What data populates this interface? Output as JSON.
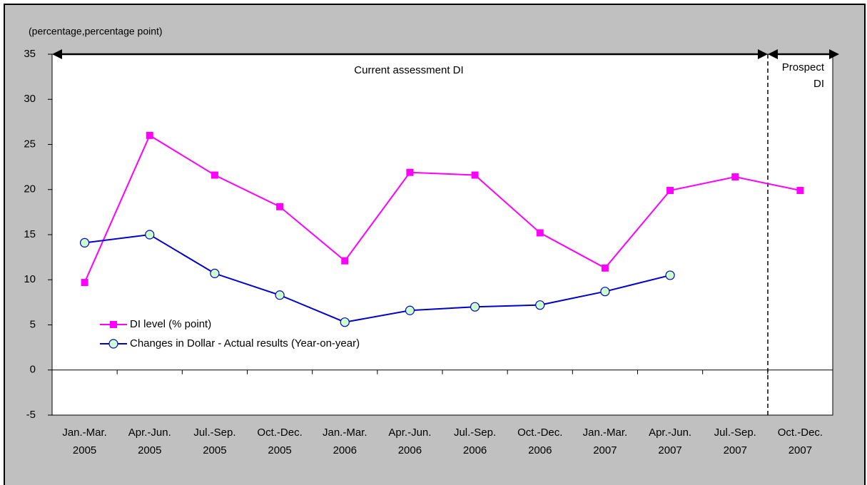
{
  "chart_data": {
    "type": "line",
    "y_label": "(percentage,percentage point)",
    "annotations": {
      "current": "Current assessment DI",
      "prospect": [
        "Prospect",
        "DI"
      ]
    },
    "categories": [
      [
        "Jan.-Mar.",
        "2005"
      ],
      [
        "Apr.-Jun.",
        "2005"
      ],
      [
        "Jul.-Sep.",
        "2005"
      ],
      [
        "Oct.-Dec.",
        "2005"
      ],
      [
        "Jan.-Mar.",
        "2006"
      ],
      [
        "Apr.-Jun.",
        "2006"
      ],
      [
        "Jul.-Sep.",
        "2006"
      ],
      [
        "Oct.-Dec.",
        "2006"
      ],
      [
        "Jan.-Mar.",
        "2007"
      ],
      [
        "Apr.-Jun.",
        "2007"
      ],
      [
        "Jul.-Sep.",
        "2007"
      ],
      [
        "Oct.-Dec.",
        "2007"
      ]
    ],
    "series": [
      {
        "name": "DI level (% point)",
        "color": "#ff00ff",
        "marker": "square",
        "values": [
          9.7,
          26.0,
          21.6,
          18.1,
          12.1,
          21.9,
          21.6,
          15.2,
          11.3,
          19.9,
          21.4,
          19.9
        ]
      },
      {
        "name": "Changes in Dollar - Actual results (Year-on-year)",
        "color": "#0000cc",
        "marker": "circle",
        "values": [
          14.1,
          15.0,
          10.7,
          8.3,
          5.3,
          6.6,
          7.0,
          7.2,
          8.7,
          10.5,
          null,
          null
        ]
      }
    ],
    "ylim": [
      -5,
      35
    ],
    "yticks": [
      -5,
      0,
      5,
      10,
      15,
      20,
      25,
      30,
      35
    ]
  }
}
